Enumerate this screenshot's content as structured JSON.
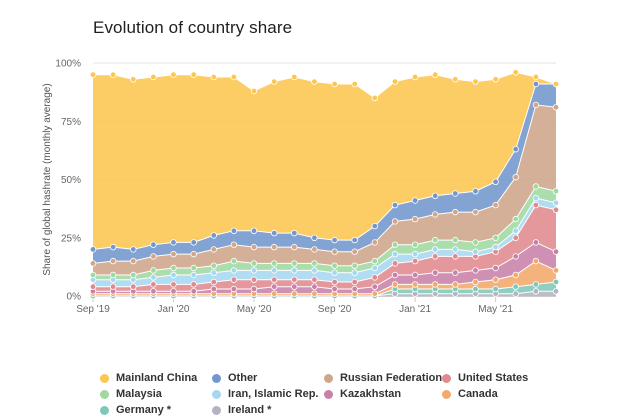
{
  "page": {
    "title": "Evolution of country share"
  },
  "chart_data": {
    "type": "area",
    "stacked": true,
    "title": "Evolution of country share",
    "ylabel": "Share of global hashrate (monthly average)",
    "xlabel": "",
    "ylim": [
      0,
      100
    ],
    "yticks": [
      "0%",
      "25%",
      "50%",
      "75%",
      "100%"
    ],
    "grid": "horizontal",
    "legend_position": "bottom",
    "x": [
      "2019-09",
      "2019-10",
      "2019-11",
      "2019-12",
      "2020-01",
      "2020-02",
      "2020-03",
      "2020-04",
      "2020-05",
      "2020-06",
      "2020-07",
      "2020-08",
      "2020-09",
      "2020-10",
      "2020-11",
      "2020-12",
      "2021-01",
      "2021-02",
      "2021-03",
      "2021-04",
      "2021-05",
      "2021-06",
      "2021-07",
      "2021-08"
    ],
    "xtick_labels": [
      {
        "x": "2019-09",
        "label": "Sep '19"
      },
      {
        "x": "2020-01",
        "label": "Jan '20"
      },
      {
        "x": "2020-05",
        "label": "May '20"
      },
      {
        "x": "2020-09",
        "label": "Sep '20"
      },
      {
        "x": "2021-01",
        "label": "Jan '21"
      },
      {
        "x": "2021-05",
        "label": "May '21"
      }
    ],
    "series": [
      {
        "name": "Ireland *",
        "color": "#b2b4c4",
        "values": [
          0,
          0,
          0,
          0,
          0,
          0,
          0,
          0,
          0,
          0,
          0,
          0,
          0,
          0,
          0,
          1,
          1,
          1,
          1,
          1,
          1,
          1,
          2,
          2
        ]
      },
      {
        "name": "Germany *",
        "color": "#7ec8b8",
        "values": [
          0,
          0,
          0,
          0,
          0,
          0,
          0,
          0,
          0,
          0,
          0,
          0,
          0,
          0,
          0,
          2,
          2,
          2,
          2,
          2,
          2,
          3,
          3,
          4
        ]
      },
      {
        "name": "Canada",
        "color": "#f2a96b",
        "values": [
          1,
          1,
          1,
          1,
          1,
          1,
          1,
          1,
          1,
          1,
          1,
          1,
          1,
          1,
          1,
          2,
          2,
          2,
          2,
          3,
          4,
          5,
          10,
          5
        ]
      },
      {
        "name": "Kazakhstan",
        "color": "#c981a8",
        "values": [
          1,
          1,
          1,
          1,
          1,
          1,
          2,
          2,
          2,
          3,
          3,
          3,
          2,
          2,
          3,
          4,
          4,
          5,
          5,
          5,
          5,
          8,
          8,
          8
        ]
      },
      {
        "name": "United States",
        "color": "#e08a8e",
        "values": [
          2,
          2,
          2,
          3,
          3,
          3,
          3,
          4,
          4,
          3,
          3,
          3,
          3,
          3,
          4,
          5,
          6,
          7,
          7,
          6,
          7,
          8,
          16,
          18
        ]
      },
      {
        "name": "Iran, Islamic Rep.",
        "color": "#a6d7f0",
        "values": [
          3,
          3,
          3,
          3,
          4,
          4,
          4,
          4,
          4,
          4,
          4,
          4,
          4,
          4,
          4,
          4,
          3,
          3,
          3,
          2,
          2,
          3,
          3,
          3
        ]
      },
      {
        "name": "Malaysia",
        "color": "#9fd9a0",
        "values": [
          2,
          2,
          2,
          3,
          3,
          3,
          3,
          4,
          3,
          3,
          3,
          3,
          3,
          3,
          3,
          4,
          4,
          4,
          4,
          4,
          4,
          5,
          5,
          5
        ]
      },
      {
        "name": "Russian Federation",
        "color": "#cfa58b",
        "values": [
          5,
          6,
          6,
          6,
          6,
          6,
          7,
          7,
          7,
          7,
          7,
          6,
          6,
          6,
          8,
          10,
          11,
          11,
          12,
          13,
          14,
          18,
          35,
          36
        ]
      },
      {
        "name": "Other",
        "color": "#7296cd",
        "values": [
          6,
          6,
          5,
          5,
          5,
          5,
          6,
          6,
          7,
          6,
          6,
          5,
          5,
          5,
          7,
          7,
          8,
          8,
          8,
          9,
          10,
          12,
          9,
          10
        ]
      },
      {
        "name": "Mainland China",
        "color": "#fcc64f",
        "values": [
          75,
          74,
          73,
          72,
          72,
          72,
          68,
          66,
          60,
          65,
          67,
          67,
          67,
          67,
          55,
          53,
          53,
          52,
          49,
          47,
          44,
          33,
          3,
          0
        ]
      }
    ],
    "legend_order": [
      "Mainland China",
      "Other",
      "Russian Federation",
      "United States",
      "Malaysia",
      "Iran, Islamic Rep.",
      "Kazakhstan",
      "Canada",
      "Germany *",
      "Ireland *"
    ]
  }
}
